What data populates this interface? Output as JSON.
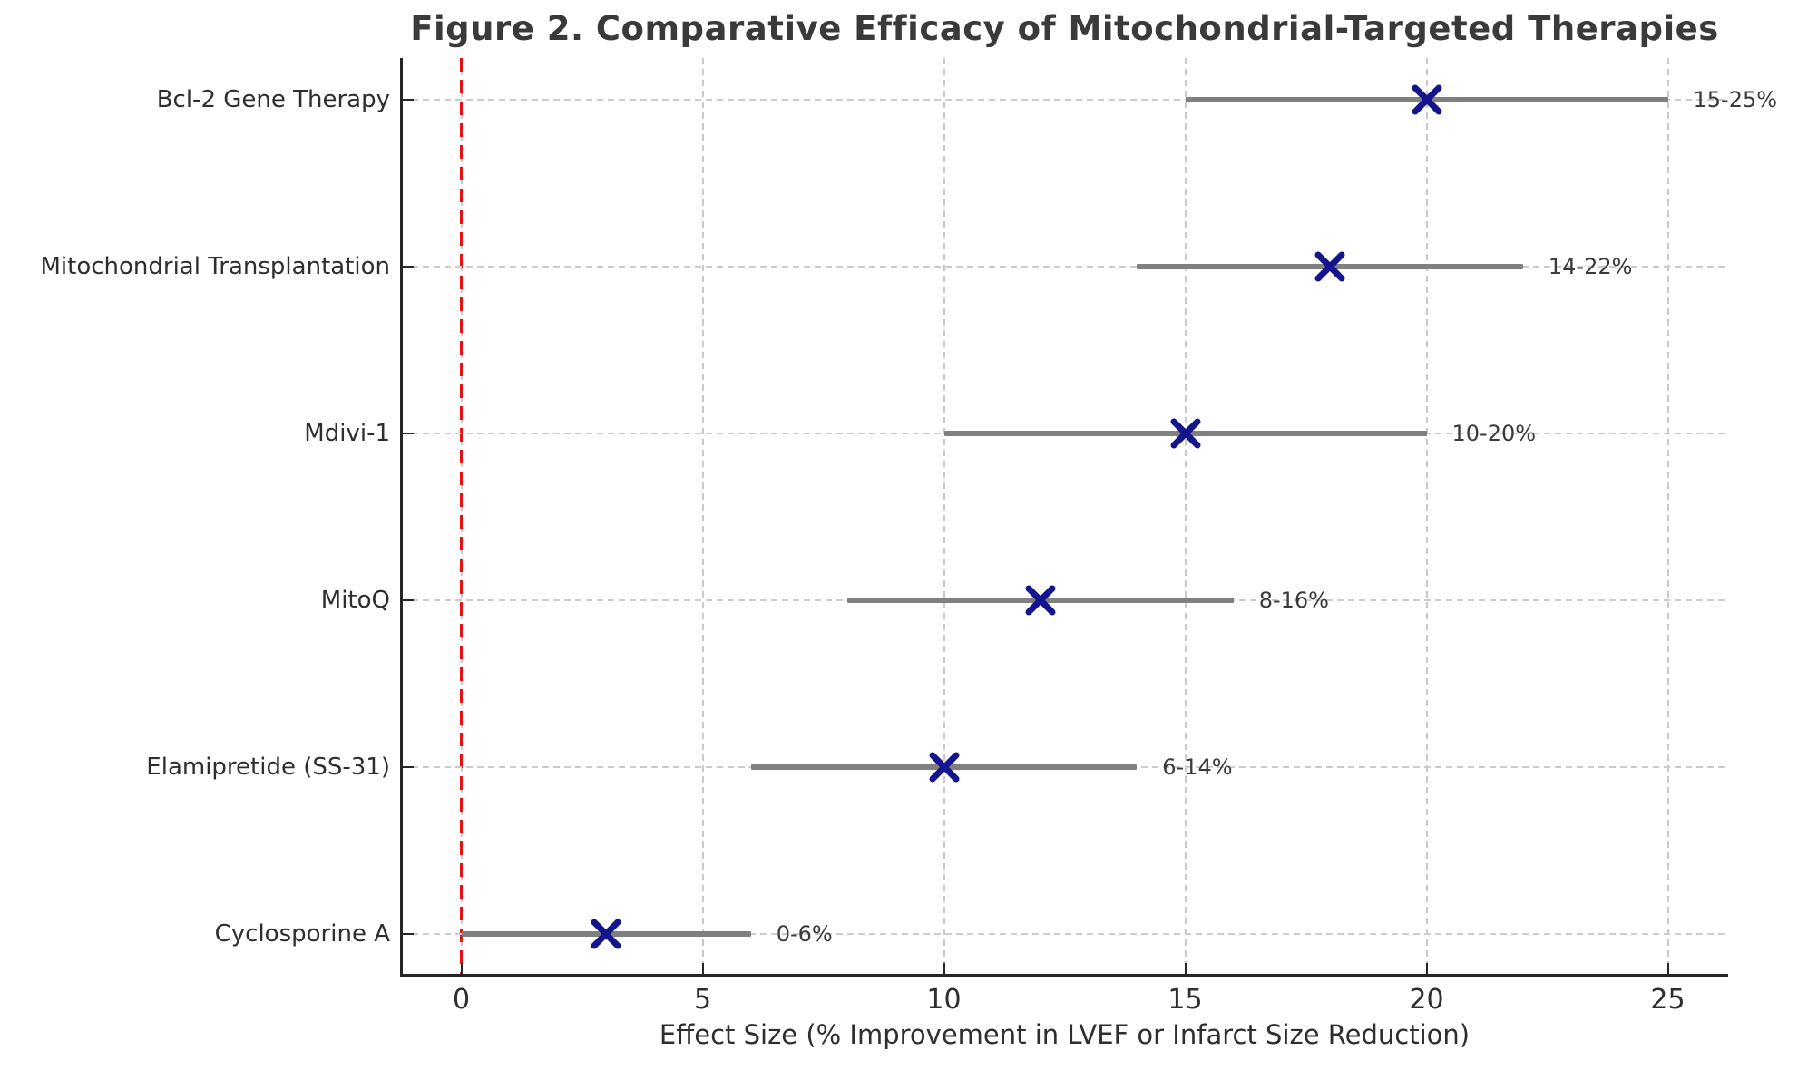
{
  "figure": {
    "title": "Figure 2. Comparative Efficacy of Mitochondrial-Targeted Therapies"
  },
  "chart_data": {
    "type": "range_dot",
    "title": "Figure 2. Comparative Efficacy of Mitochondrial-Targeted Therapies",
    "xlabel": "Effect Size (% Improvement in LVEF or Infarct Size Reduction)",
    "xlim": [
      -1.25,
      26.25
    ],
    "xticks": [
      0,
      5,
      10,
      15,
      20,
      25
    ],
    "grid": true,
    "legend": "none",
    "zero_line": {
      "x": 0,
      "style": "dashed",
      "color": "#e51212"
    },
    "categories": [
      "Bcl-2 Gene Therapy",
      "Mitochondrial Transplantation",
      "Mdivi-1",
      "MitoQ",
      "Elamipretide (SS-31)",
      "Cyclosporine A"
    ],
    "series": [
      {
        "name": "effect-size-range",
        "ranges": [
          [
            15,
            25
          ],
          [
            14,
            22
          ],
          [
            10,
            20
          ],
          [
            8,
            16
          ],
          [
            6,
            14
          ],
          [
            0,
            6
          ]
        ],
        "points": [
          20,
          18,
          15,
          12,
          10,
          3
        ],
        "labels": [
          "15-25%",
          "14-22%",
          "10-20%",
          "8-16%",
          "6-14%",
          "0-6%"
        ]
      }
    ],
    "colors": {
      "range_bar": "#808080",
      "marker": "#14148c",
      "grid": "#cccccc",
      "zero_line": "#e51212",
      "text": "#3a3a3a",
      "axis": "#262626"
    }
  }
}
